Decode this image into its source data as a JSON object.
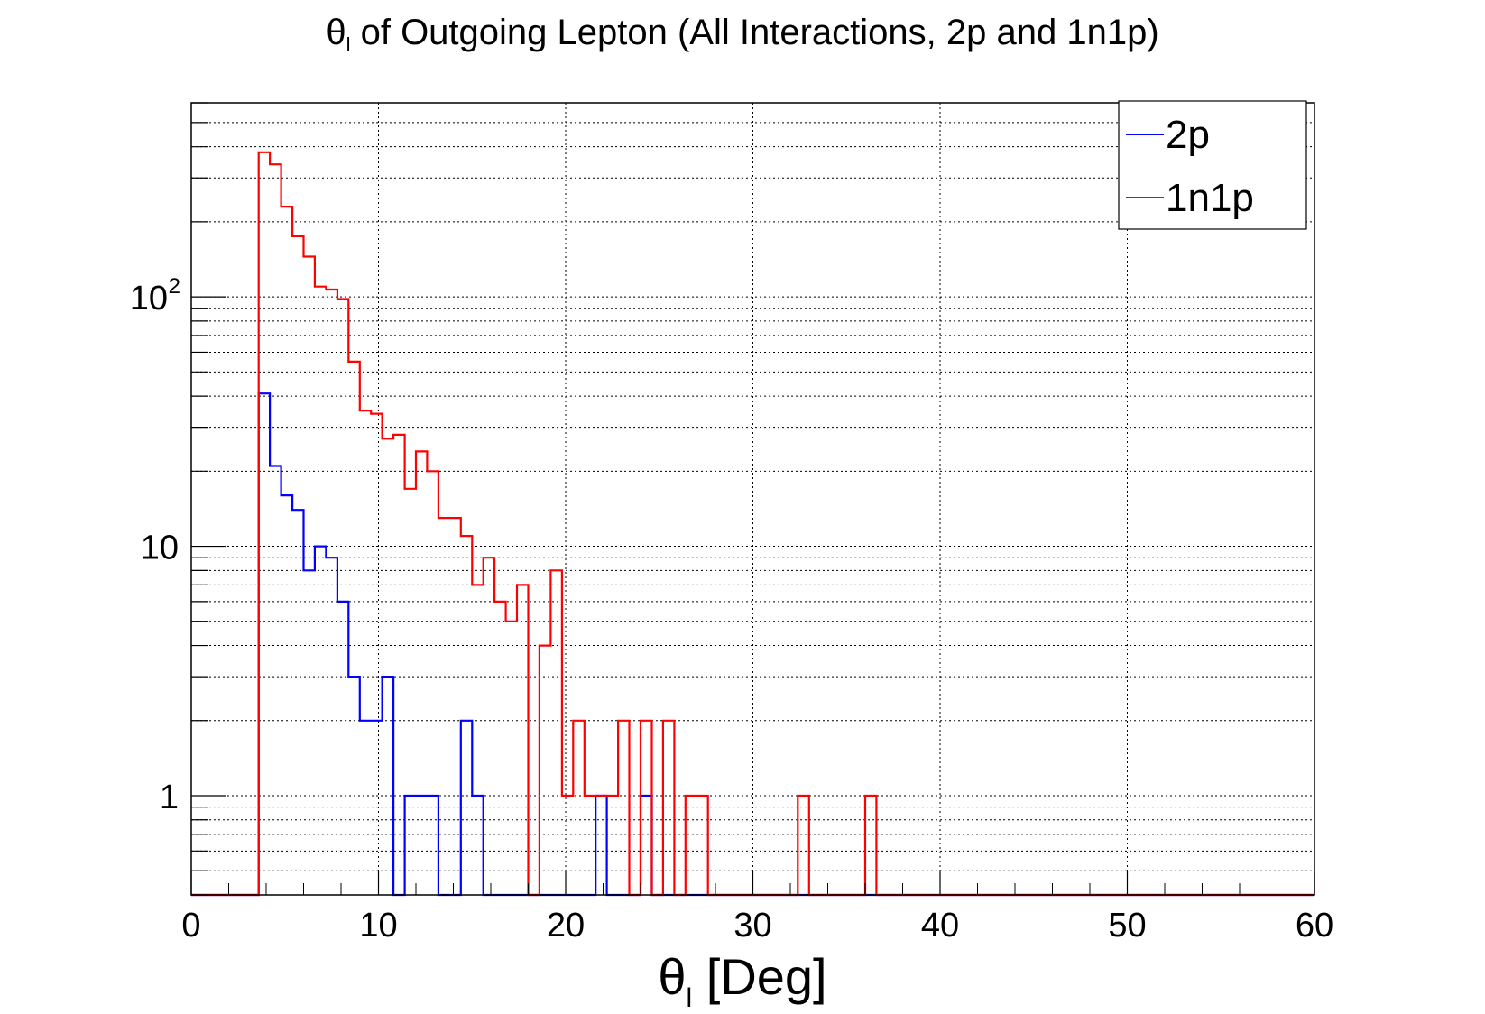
{
  "chart_data": {
    "type": "histogram",
    "title_symbol": "θ",
    "title_sub": "l",
    "title_rest": " of Outgoing Lepton (All Interactions, 2p and 1n1p)",
    "xlabel_symbol": "θ",
    "xlabel_sub": "l",
    "xlabel_rest": " [Deg]",
    "ylabel": "",
    "xlim": [
      0,
      60
    ],
    "ylim": [
      0.4,
      600
    ],
    "yscale": "log",
    "grid": true,
    "legend_position": "top-right",
    "bin_width": 0.6,
    "x_ticks": [
      "0",
      "10",
      "20",
      "30",
      "40",
      "50",
      "60"
    ],
    "y_ticks": [
      {
        "value": 1,
        "label": "1",
        "exp": ""
      },
      {
        "value": 10,
        "label": "10",
        "exp": ""
      },
      {
        "value": 100,
        "label": "10",
        "exp": "2"
      }
    ],
    "series": [
      {
        "name": "2p",
        "color": "#0000ff",
        "bins": [
          {
            "x": 3.6,
            "value": 41
          },
          {
            "x": 4.2,
            "value": 21
          },
          {
            "x": 4.8,
            "value": 16
          },
          {
            "x": 5.4,
            "value": 14
          },
          {
            "x": 6.0,
            "value": 8
          },
          {
            "x": 6.6,
            "value": 10
          },
          {
            "x": 7.2,
            "value": 9
          },
          {
            "x": 7.8,
            "value": 6
          },
          {
            "x": 8.4,
            "value": 3
          },
          {
            "x": 9.0,
            "value": 2
          },
          {
            "x": 9.6,
            "value": 2
          },
          {
            "x": 10.2,
            "value": 3
          },
          {
            "x": 11.4,
            "value": 1
          },
          {
            "x": 12.0,
            "value": 1
          },
          {
            "x": 12.6,
            "value": 1
          },
          {
            "x": 14.4,
            "value": 2
          },
          {
            "x": 15.0,
            "value": 1
          },
          {
            "x": 21.6,
            "value": 1
          },
          {
            "x": 24.0,
            "value": 1
          }
        ]
      },
      {
        "name": "1n1p",
        "color": "#ff0000",
        "bins": [
          {
            "x": 3.6,
            "value": 380
          },
          {
            "x": 4.2,
            "value": 340
          },
          {
            "x": 4.8,
            "value": 230
          },
          {
            "x": 5.4,
            "value": 175
          },
          {
            "x": 6.0,
            "value": 145
          },
          {
            "x": 6.6,
            "value": 110
          },
          {
            "x": 7.2,
            "value": 107
          },
          {
            "x": 7.8,
            "value": 98
          },
          {
            "x": 8.4,
            "value": 55
          },
          {
            "x": 9.0,
            "value": 35
          },
          {
            "x": 9.6,
            "value": 34
          },
          {
            "x": 10.2,
            "value": 27
          },
          {
            "x": 10.8,
            "value": 28
          },
          {
            "x": 11.4,
            "value": 17
          },
          {
            "x": 12.0,
            "value": 24
          },
          {
            "x": 12.6,
            "value": 20
          },
          {
            "x": 13.2,
            "value": 13
          },
          {
            "x": 13.8,
            "value": 13
          },
          {
            "x": 14.4,
            "value": 11
          },
          {
            "x": 15.0,
            "value": 7
          },
          {
            "x": 15.6,
            "value": 9
          },
          {
            "x": 16.2,
            "value": 6
          },
          {
            "x": 16.8,
            "value": 5
          },
          {
            "x": 17.4,
            "value": 7
          },
          {
            "x": 18.6,
            "value": 4
          },
          {
            "x": 19.2,
            "value": 8
          },
          {
            "x": 19.8,
            "value": 1
          },
          {
            "x": 20.4,
            "value": 2
          },
          {
            "x": 21.0,
            "value": 1
          },
          {
            "x": 21.6,
            "value": 1
          },
          {
            "x": 22.2,
            "value": 1
          },
          {
            "x": 22.8,
            "value": 2
          },
          {
            "x": 24.0,
            "value": 2
          },
          {
            "x": 25.2,
            "value": 2
          },
          {
            "x": 26.4,
            "value": 1
          },
          {
            "x": 27.0,
            "value": 1
          },
          {
            "x": 32.4,
            "value": 1
          },
          {
            "x": 36.0,
            "value": 1
          }
        ]
      }
    ]
  }
}
